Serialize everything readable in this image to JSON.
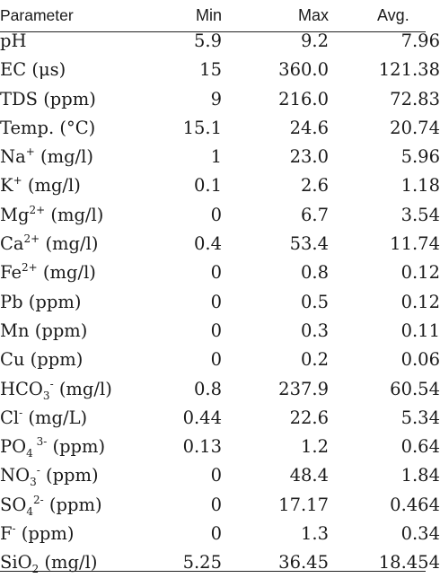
{
  "header": {
    "parameter": "Parameter",
    "min": "Min",
    "max": "Max",
    "avg": "Avg."
  },
  "rows": [
    {
      "parts": [
        {
          "t": "pH"
        }
      ],
      "min": "5.9",
      "max": "9.2",
      "avg": "7.96"
    },
    {
      "parts": [
        {
          "t": "EC (μs)"
        }
      ],
      "min": "15",
      "max": "360.0",
      "avg": "121.38"
    },
    {
      "parts": [
        {
          "t": "TDS (ppm)"
        }
      ],
      "min": "9",
      "max": "216.0",
      "avg": "72.83"
    },
    {
      "parts": [
        {
          "t": "Temp. (°C)"
        }
      ],
      "min": "15.1",
      "max": "24.6",
      "avg": "20.74"
    },
    {
      "parts": [
        {
          "t": "Na"
        },
        {
          "sup": "+"
        },
        {
          "t": " (mg/l)"
        }
      ],
      "min": "1",
      "max": "23.0",
      "avg": "5.96"
    },
    {
      "parts": [
        {
          "t": "K"
        },
        {
          "sup": "+"
        },
        {
          "t": " (mg/l)"
        }
      ],
      "min": "0.1",
      "max": "2.6",
      "avg": "1.18"
    },
    {
      "parts": [
        {
          "t": "Mg"
        },
        {
          "sup": "2+"
        },
        {
          "t": " (mg/l)"
        }
      ],
      "min": "0",
      "max": "6.7",
      "avg": "3.54"
    },
    {
      "parts": [
        {
          "t": "Ca"
        },
        {
          "sup": "2+"
        },
        {
          "t": " (mg/l)"
        }
      ],
      "min": "0.4",
      "max": "53.4",
      "avg": "11.74"
    },
    {
      "parts": [
        {
          "t": "Fe"
        },
        {
          "sup": "2+"
        },
        {
          "t": " (mg/l)"
        }
      ],
      "min": "0",
      "max": "0.8",
      "avg": "0.12"
    },
    {
      "parts": [
        {
          "t": "Pb (ppm)"
        }
      ],
      "min": "0",
      "max": "0.5",
      "avg": "0.12"
    },
    {
      "parts": [
        {
          "t": "Mn (ppm)"
        }
      ],
      "min": "0",
      "max": "0.3",
      "avg": "0.11"
    },
    {
      "parts": [
        {
          "t": "Cu (ppm)"
        }
      ],
      "min": "0",
      "max": "0.2",
      "avg": "0.06"
    },
    {
      "parts": [
        {
          "t": "HCO"
        },
        {
          "sub": "3"
        },
        {
          "sup": "-"
        },
        {
          "t": " (mg/l)"
        }
      ],
      "min": "0.8",
      "max": "237.9",
      "avg": "60.54"
    },
    {
      "parts": [
        {
          "t": "Cl"
        },
        {
          "sup": "-"
        },
        {
          "t": " (mg/L)"
        }
      ],
      "min": "0.44",
      "max": "22.6",
      "avg": "5.34"
    },
    {
      "parts": [
        {
          "t": "PO"
        },
        {
          "sub": "4"
        },
        {
          "sup": " 3-"
        },
        {
          "t": " (ppm)"
        }
      ],
      "min": "0.13",
      "max": "1.2",
      "avg": "0.64"
    },
    {
      "parts": [
        {
          "t": "NO"
        },
        {
          "sub": "3"
        },
        {
          "sup": "-"
        },
        {
          "t": " (ppm)"
        }
      ],
      "min": "0",
      "max": "48.4",
      "avg": "1.84"
    },
    {
      "parts": [
        {
          "t": "SO"
        },
        {
          "sub": "4"
        },
        {
          "sup": "2-"
        },
        {
          "t": " (ppm)"
        }
      ],
      "min": "0",
      "max": "17.17",
      "avg": "0.464"
    },
    {
      "parts": [
        {
          "t": "F"
        },
        {
          "sup": "-"
        },
        {
          "t": " (ppm)"
        }
      ],
      "min": "0",
      "max": "1.3",
      "avg": "0.34"
    },
    {
      "parts": [
        {
          "t": "SiO"
        },
        {
          "sub": "2"
        },
        {
          "t": " (mg/l)"
        }
      ],
      "min": "5.25",
      "max": "36.45",
      "avg": "18.454"
    }
  ]
}
